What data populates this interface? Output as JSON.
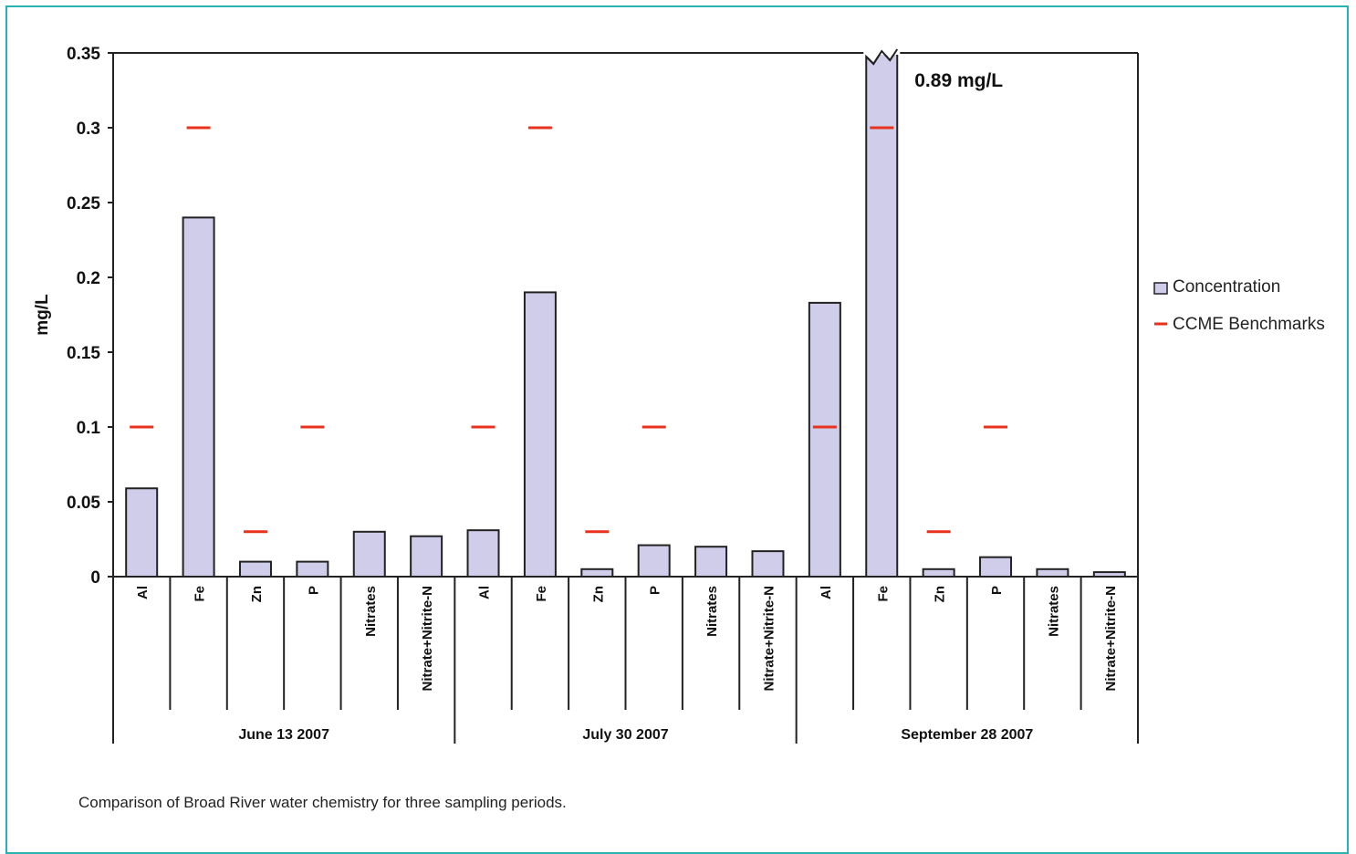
{
  "chart_data": {
    "type": "bar",
    "ylabel": "mg/L",
    "ylim": [
      0,
      0.35
    ],
    "yticks": [
      "0",
      "0.05",
      "0.1",
      "0.15",
      "0.2",
      "0.25",
      "0.3",
      "0.35"
    ],
    "groups": [
      {
        "label": "June 13 2007",
        "categories": [
          "Al",
          "Fe",
          "Zn",
          "P",
          "Nitrates",
          "Nitrate+Nitrite-N"
        ],
        "concentration": [
          0.059,
          0.24,
          0.01,
          0.01,
          0.03,
          0.027
        ],
        "benchmarks": [
          0.1,
          0.3,
          0.03,
          0.1,
          null,
          null
        ]
      },
      {
        "label": "July 30 2007",
        "categories": [
          "Al",
          "Fe",
          "Zn",
          "P",
          "Nitrates",
          "Nitrate+Nitrite-N"
        ],
        "concentration": [
          0.031,
          0.19,
          0.005,
          0.021,
          0.02,
          0.017
        ],
        "benchmarks": [
          0.1,
          0.3,
          0.03,
          0.1,
          null,
          null
        ]
      },
      {
        "label": "September 28 2007",
        "categories": [
          "Al",
          "Fe",
          "Zn",
          "P",
          "Nitrates",
          "Nitrate+Nitrite-N"
        ],
        "concentration": [
          0.183,
          0.89,
          0.005,
          0.013,
          0.005,
          0.003
        ],
        "benchmarks": [
          0.1,
          0.3,
          0.03,
          0.1,
          null,
          null
        ]
      }
    ],
    "broken_bar_note": "0.89 mg/L",
    "legend": {
      "placement": "right",
      "items": [
        "Concentration",
        "CCME Benchmarks"
      ]
    },
    "colors": {
      "bar_fill": "#cfcde9",
      "bar_stroke": "#222222",
      "benchmark": "#e8321e",
      "frame": "#27b3b3"
    }
  },
  "caption": "Comparison of Broad River water chemistry for three sampling periods."
}
